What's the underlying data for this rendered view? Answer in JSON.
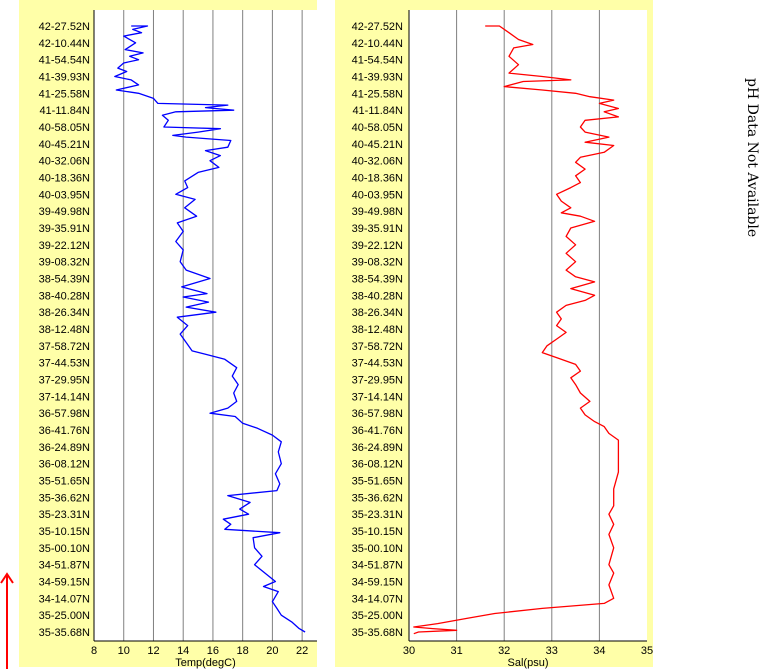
{
  "side_note": "pH Data Not Available",
  "colors": {
    "panel_bg": "#ffffa8",
    "temp_line": "#0000ff",
    "sal_line": "#ff0000",
    "arrow": "#ff0000",
    "grid": "#808080"
  },
  "chart_data": [
    {
      "type": "line",
      "xlabel": "Temp(degC)",
      "ylabel": "",
      "xlim": [
        8,
        23
      ],
      "xticks": [
        8,
        10,
        12,
        14,
        16,
        18,
        20,
        22
      ],
      "grid": "vertical",
      "y_categories": [
        "42-27.52N",
        "42-10.44N",
        "41-54.54N",
        "41-39.93N",
        "41-25.58N",
        "41-11.84N",
        "40-58.05N",
        "40-45.21N",
        "40-32.06N",
        "40-18.36N",
        "40-03.95N",
        "39-49.98N",
        "39-35.91N",
        "39-22.12N",
        "39-08.32N",
        "38-54.39N",
        "38-40.28N",
        "38-26.34N",
        "38-12.48N",
        "37-58.72N",
        "37-44.53N",
        "37-29.95N",
        "37-14.14N",
        "36-57.98N",
        "36-41.76N",
        "36-24.89N",
        "36-08.12N",
        "35-51.65N",
        "35-36.62N",
        "35-23.31N",
        "35-10.15N",
        "35-00.10N",
        "34-51.87N",
        "34-59.15N",
        "34-14.07N",
        "35-25.00N",
        "35-35.68N"
      ],
      "series": [
        {
          "name": "",
          "color": "#0000ff",
          "points": [
            [
              10.5,
              0
            ],
            [
              11.6,
              0
            ],
            [
              10.6,
              0.2
            ],
            [
              11.2,
              0.4
            ],
            [
              10.0,
              0.6
            ],
            [
              10.8,
              1.0
            ],
            [
              10.1,
              1.4
            ],
            [
              11.3,
              1.6
            ],
            [
              10.4,
              1.8
            ],
            [
              11.0,
              2.0
            ],
            [
              10.0,
              2.2
            ],
            [
              9.6,
              2.5
            ],
            [
              10.2,
              2.7
            ],
            [
              9.4,
              3.0
            ],
            [
              10.5,
              3.2
            ],
            [
              11.0,
              3.5
            ],
            [
              9.5,
              3.8
            ],
            [
              11.0,
              4.0
            ],
            [
              12.0,
              4.3
            ],
            [
              12.3,
              4.6
            ],
            [
              17.0,
              4.7
            ],
            [
              15.5,
              4.85
            ],
            [
              17.4,
              5.0
            ],
            [
              13.5,
              5.1
            ],
            [
              12.6,
              5.3
            ],
            [
              13.0,
              5.6
            ],
            [
              12.7,
              6.0
            ],
            [
              16.5,
              6.1
            ],
            [
              15.0,
              6.3
            ],
            [
              13.3,
              6.5
            ],
            [
              14.2,
              6.6
            ],
            [
              17.2,
              6.8
            ],
            [
              17.0,
              7.2
            ],
            [
              15.5,
              7.4
            ],
            [
              16.5,
              7.7
            ],
            [
              15.8,
              8.0
            ],
            [
              16.4,
              8.4
            ],
            [
              15.0,
              8.7
            ],
            [
              14.1,
              9.2
            ],
            [
              14.3,
              9.6
            ],
            [
              13.5,
              10.0
            ],
            [
              14.8,
              10.3
            ],
            [
              14.1,
              10.8
            ],
            [
              14.9,
              11.3
            ],
            [
              13.6,
              11.7
            ],
            [
              14.0,
              12.2
            ],
            [
              13.5,
              12.8
            ],
            [
              14.0,
              13.3
            ],
            [
              13.8,
              14.0
            ],
            [
              14.2,
              14.5
            ],
            [
              15.8,
              15.0
            ],
            [
              13.9,
              15.5
            ],
            [
              15.6,
              15.9
            ],
            [
              14.0,
              16.1
            ],
            [
              15.7,
              16.4
            ],
            [
              14.2,
              16.7
            ],
            [
              16.2,
              17.0
            ],
            [
              13.6,
              17.3
            ],
            [
              14.3,
              17.8
            ],
            [
              13.8,
              18.3
            ],
            [
              14.2,
              18.8
            ],
            [
              14.6,
              19.3
            ],
            [
              15.5,
              19.5
            ],
            [
              16.8,
              19.8
            ],
            [
              17.6,
              20.3
            ],
            [
              17.3,
              20.8
            ],
            [
              17.7,
              21.3
            ],
            [
              17.4,
              21.8
            ],
            [
              17.6,
              22.3
            ],
            [
              17.0,
              22.7
            ],
            [
              15.8,
              23.0
            ],
            [
              17.5,
              23.2
            ],
            [
              18.0,
              23.6
            ],
            [
              19.0,
              23.9
            ],
            [
              20.0,
              24.3
            ],
            [
              20.6,
              24.7
            ],
            [
              20.4,
              25.3
            ],
            [
              20.6,
              26.0
            ],
            [
              20.2,
              26.6
            ],
            [
              20.5,
              27.2
            ],
            [
              20.3,
              27.6
            ],
            [
              17.0,
              27.9
            ],
            [
              18.5,
              28.3
            ],
            [
              17.8,
              28.7
            ],
            [
              18.4,
              29.0
            ],
            [
              16.7,
              29.3
            ],
            [
              17.2,
              29.6
            ],
            [
              16.8,
              29.9
            ],
            [
              20.5,
              30.1
            ],
            [
              18.7,
              30.4
            ],
            [
              18.8,
              31.0
            ],
            [
              19.3,
              31.5
            ],
            [
              18.8,
              32.0
            ],
            [
              19.5,
              32.5
            ],
            [
              20.2,
              33.0
            ],
            [
              19.4,
              33.3
            ],
            [
              20.4,
              33.6
            ],
            [
              20.0,
              34.2
            ],
            [
              20.3,
              34.6
            ],
            [
              20.6,
              35.0
            ],
            [
              21.3,
              35.4
            ],
            [
              21.8,
              35.8
            ],
            [
              22.2,
              36.0
            ]
          ]
        }
      ]
    },
    {
      "type": "line",
      "xlabel": "Sal(psu)",
      "ylabel": "",
      "xlim": [
        30,
        35
      ],
      "xticks": [
        30,
        31,
        32,
        33,
        34,
        35
      ],
      "grid": "vertical",
      "y_categories": [
        "42-27.52N",
        "42-10.44N",
        "41-54.54N",
        "41-39.93N",
        "41-25.58N",
        "41-11.84N",
        "40-58.05N",
        "40-45.21N",
        "40-32.06N",
        "40-18.36N",
        "40-03.95N",
        "39-49.98N",
        "39-35.91N",
        "39-22.12N",
        "39-08.32N",
        "38-54.39N",
        "38-40.28N",
        "38-26.34N",
        "38-12.48N",
        "37-58.72N",
        "37-44.53N",
        "37-29.95N",
        "37-14.14N",
        "36-57.98N",
        "36-41.76N",
        "36-24.89N",
        "36-08.12N",
        "35-51.65N",
        "35-36.62N",
        "35-23.31N",
        "35-10.15N",
        "35-00.10N",
        "34-51.87N",
        "34-59.15N",
        "34-14.07N",
        "35-25.00N",
        "35-35.68N"
      ],
      "series": [
        {
          "name": "",
          "color": "#ff0000",
          "points": [
            [
              31.6,
              0
            ],
            [
              31.9,
              0
            ],
            [
              32.1,
              0.4
            ],
            [
              32.3,
              0.8
            ],
            [
              32.6,
              1.1
            ],
            [
              32.2,
              1.3
            ],
            [
              32.1,
              1.8
            ],
            [
              32.3,
              2.3
            ],
            [
              32.1,
              2.8
            ],
            [
              32.8,
              3.0
            ],
            [
              33.4,
              3.2
            ],
            [
              32.4,
              3.3
            ],
            [
              32.0,
              3.6
            ],
            [
              32.8,
              3.8
            ],
            [
              33.5,
              4.0
            ],
            [
              33.8,
              4.2
            ],
            [
              34.3,
              4.4
            ],
            [
              34.0,
              4.6
            ],
            [
              34.4,
              4.9
            ],
            [
              34.1,
              5.1
            ],
            [
              34.4,
              5.4
            ],
            [
              33.7,
              5.6
            ],
            [
              33.6,
              6.0
            ],
            [
              33.7,
              6.3
            ],
            [
              34.2,
              6.6
            ],
            [
              33.7,
              6.9
            ],
            [
              34.3,
              7.1
            ],
            [
              34.1,
              7.5
            ],
            [
              33.6,
              7.8
            ],
            [
              33.5,
              8.1
            ],
            [
              33.7,
              8.5
            ],
            [
              33.5,
              8.9
            ],
            [
              33.6,
              9.3
            ],
            [
              33.4,
              9.6
            ],
            [
              33.1,
              10.0
            ],
            [
              33.2,
              10.4
            ],
            [
              33.4,
              10.8
            ],
            [
              33.2,
              11.1
            ],
            [
              33.6,
              11.3
            ],
            [
              33.9,
              11.6
            ],
            [
              33.4,
              12.0
            ],
            [
              33.3,
              12.5
            ],
            [
              33.5,
              13.0
            ],
            [
              33.3,
              13.5
            ],
            [
              33.5,
              14.0
            ],
            [
              33.3,
              14.5
            ],
            [
              33.5,
              14.9
            ],
            [
              33.9,
              15.2
            ],
            [
              33.4,
              15.6
            ],
            [
              33.9,
              16.0
            ],
            [
              33.7,
              16.3
            ],
            [
              33.3,
              16.6
            ],
            [
              33.1,
              17.0
            ],
            [
              33.2,
              17.4
            ],
            [
              33.1,
              17.8
            ],
            [
              33.3,
              18.2
            ],
            [
              33.1,
              18.6
            ],
            [
              32.9,
              19.0
            ],
            [
              32.8,
              19.4
            ],
            [
              33.1,
              19.7
            ],
            [
              33.5,
              20.1
            ],
            [
              33.6,
              20.5
            ],
            [
              33.4,
              20.9
            ],
            [
              33.5,
              21.3
            ],
            [
              33.6,
              21.8
            ],
            [
              33.8,
              22.3
            ],
            [
              33.6,
              22.7
            ],
            [
              33.7,
              23.1
            ],
            [
              33.9,
              23.5
            ],
            [
              34.1,
              23.8
            ],
            [
              34.2,
              24.2
            ],
            [
              34.4,
              24.6
            ],
            [
              34.4,
              25.5
            ],
            [
              34.4,
              26.5
            ],
            [
              34.3,
              27.5
            ],
            [
              34.3,
              28.5
            ],
            [
              34.2,
              29.0
            ],
            [
              34.3,
              29.6
            ],
            [
              34.2,
              30.2
            ],
            [
              34.3,
              31.0
            ],
            [
              34.2,
              32.0
            ],
            [
              34.3,
              32.5
            ],
            [
              34.2,
              33.2
            ],
            [
              34.3,
              34.0
            ],
            [
              34.1,
              34.3
            ],
            [
              32.8,
              34.6
            ],
            [
              31.8,
              34.9
            ],
            [
              31.2,
              35.2
            ],
            [
              30.6,
              35.5
            ],
            [
              30.1,
              35.7
            ],
            [
              30.5,
              35.8
            ],
            [
              31.0,
              35.9
            ],
            [
              30.2,
              36.0
            ],
            [
              30.1,
              36.1
            ]
          ]
        }
      ]
    }
  ]
}
